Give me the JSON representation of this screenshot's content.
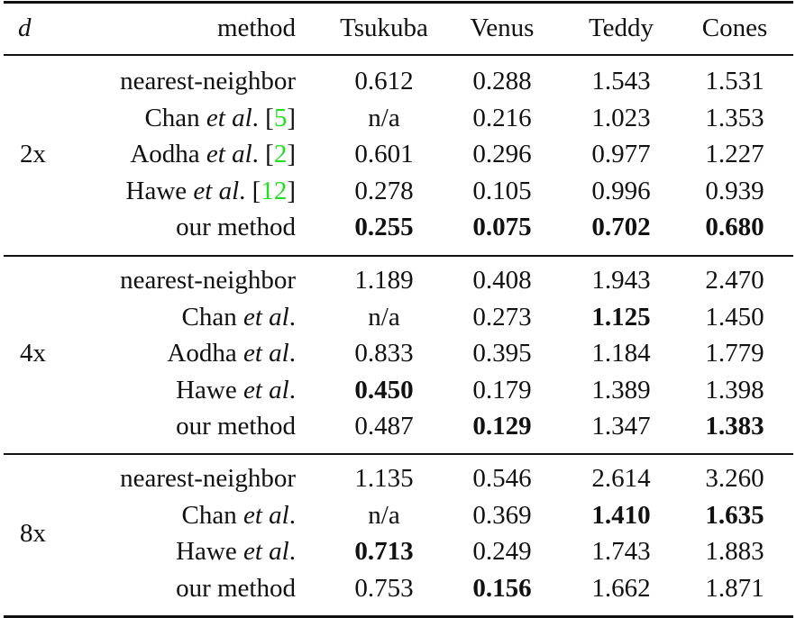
{
  "header": {
    "d": "d",
    "method": "method",
    "columns": [
      "Tsukuba",
      "Venus",
      "Teddy",
      "Cones"
    ]
  },
  "cite_color": "#22dd22",
  "groups": [
    {
      "d": "2x",
      "rows": [
        {
          "method": "nearest-neighbor",
          "etal": "",
          "cite": "",
          "values": [
            "0.612",
            "0.288",
            "1.543",
            "1.531"
          ],
          "bold": [
            false,
            false,
            false,
            false
          ]
        },
        {
          "method": "Chan",
          "etal": "et al",
          "cite": "5",
          "values": [
            "n/a",
            "0.216",
            "1.023",
            "1.353"
          ],
          "bold": [
            false,
            false,
            false,
            false
          ]
        },
        {
          "method": "Aodha",
          "etal": "et al",
          "cite": "2",
          "values": [
            "0.601",
            "0.296",
            "0.977",
            "1.227"
          ],
          "bold": [
            false,
            false,
            false,
            false
          ]
        },
        {
          "method": "Hawe",
          "etal": "et al",
          "cite": "12",
          "values": [
            "0.278",
            "0.105",
            "0.996",
            "0.939"
          ],
          "bold": [
            false,
            false,
            false,
            false
          ]
        },
        {
          "method": "our method",
          "etal": "",
          "cite": "",
          "values": [
            "0.255",
            "0.075",
            "0.702",
            "0.680"
          ],
          "bold": [
            true,
            true,
            true,
            true
          ]
        }
      ]
    },
    {
      "d": "4x",
      "rows": [
        {
          "method": "nearest-neighbor",
          "etal": "",
          "cite": "",
          "values": [
            "1.189",
            "0.408",
            "1.943",
            "2.470"
          ],
          "bold": [
            false,
            false,
            false,
            false
          ]
        },
        {
          "method": "Chan",
          "etal": "et al",
          "cite": "",
          "values": [
            "n/a",
            "0.273",
            "1.125",
            "1.450"
          ],
          "bold": [
            false,
            false,
            true,
            false
          ]
        },
        {
          "method": "Aodha",
          "etal": "et al",
          "cite": "",
          "values": [
            "0.833",
            "0.395",
            "1.184",
            "1.779"
          ],
          "bold": [
            false,
            false,
            false,
            false
          ]
        },
        {
          "method": "Hawe",
          "etal": "et al",
          "cite": "",
          "values": [
            "0.450",
            "0.179",
            "1.389",
            "1.398"
          ],
          "bold": [
            true,
            false,
            false,
            false
          ]
        },
        {
          "method": "our method",
          "etal": "",
          "cite": "",
          "values": [
            "0.487",
            "0.129",
            "1.347",
            "1.383"
          ],
          "bold": [
            false,
            true,
            false,
            true
          ]
        }
      ]
    },
    {
      "d": "8x",
      "rows": [
        {
          "method": "nearest-neighbor",
          "etal": "",
          "cite": "",
          "values": [
            "1.135",
            "0.546",
            "2.614",
            "3.260"
          ],
          "bold": [
            false,
            false,
            false,
            false
          ]
        },
        {
          "method": "Chan",
          "etal": "et al",
          "cite": "",
          "values": [
            "n/a",
            "0.369",
            "1.410",
            "1.635"
          ],
          "bold": [
            false,
            false,
            true,
            true
          ]
        },
        {
          "method": "Hawe",
          "etal": "et al",
          "cite": "",
          "values": [
            "0.713",
            "0.249",
            "1.743",
            "1.883"
          ],
          "bold": [
            true,
            false,
            false,
            false
          ]
        },
        {
          "method": "our method",
          "etal": "",
          "cite": "",
          "values": [
            "0.753",
            "0.156",
            "1.662",
            "1.871"
          ],
          "bold": [
            false,
            true,
            false,
            false
          ]
        }
      ]
    }
  ]
}
